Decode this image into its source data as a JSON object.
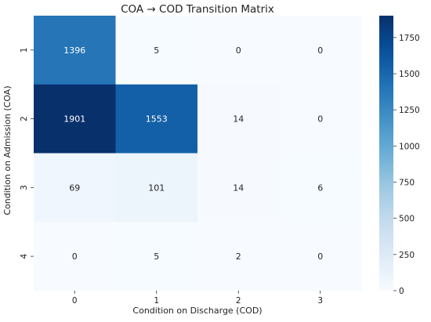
{
  "chart_data": {
    "type": "heatmap",
    "title": "COA → COD Transition Matrix",
    "xlabel": "Condition on Discharge (COD)",
    "ylabel": "Condition on Admission (COA)",
    "x_categories": [
      "0",
      "1",
      "2",
      "3"
    ],
    "y_categories": [
      "1",
      "2",
      "3",
      "4"
    ],
    "values": [
      [
        1396,
        5,
        0,
        0
      ],
      [
        1901,
        1553,
        14,
        0
      ],
      [
        69,
        101,
        14,
        6
      ],
      [
        0,
        5,
        2,
        0
      ]
    ],
    "colorbar": {
      "min": 0,
      "max": 1901,
      "ticks": [
        0,
        250,
        500,
        750,
        1000,
        1250,
        1500,
        1750
      ],
      "colormap": "Blues"
    },
    "annotations": true
  }
}
